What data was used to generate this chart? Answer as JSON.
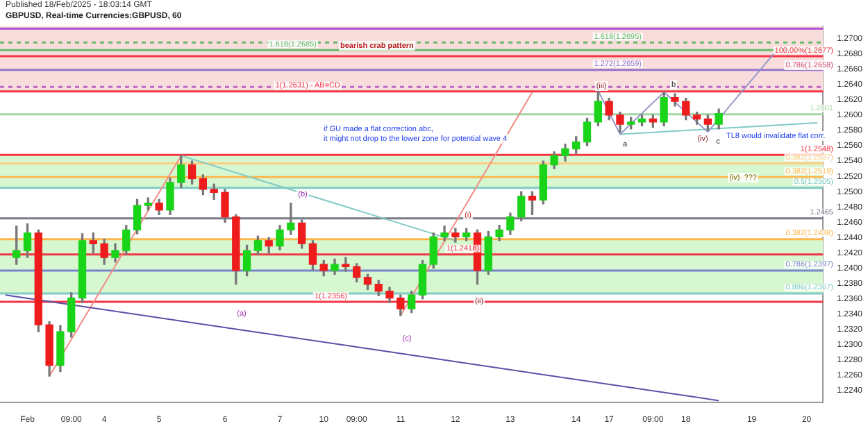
{
  "chart_data": {
    "type": "candlestick",
    "title": "GBPUSD, Real-time Currencies:GBPUSD, 60",
    "subtitle": "Published 18/Feb/2025 - 18:03:14 GMT",
    "categories": [
      null,
      null,
      "Feb",
      null,
      null,
      null,
      "09:00",
      null,
      null,
      "4",
      null,
      null,
      null,
      null,
      "5",
      null,
      null,
      null,
      null,
      null,
      "6",
      null,
      null,
      null,
      null,
      "7",
      null,
      null,
      null,
      "10",
      null,
      null,
      "09:00",
      null,
      null,
      null,
      "11",
      null,
      null,
      null,
      null,
      "12",
      null,
      null,
      null,
      null,
      "13",
      null,
      null,
      null,
      null,
      null,
      "14",
      null,
      null,
      "17",
      null,
      null,
      null,
      "09:00",
      null,
      null,
      "18",
      null,
      null,
      null,
      null,
      null,
      "19",
      null,
      null,
      null,
      null,
      "20",
      null
    ],
    "ohlc": [
      null,
      [
        1.2414,
        1.2455,
        1.2405,
        1.2423
      ],
      [
        1.2423,
        1.2458,
        1.2414,
        1.2446
      ],
      [
        1.2446,
        1.245,
        1.2317,
        1.2326
      ],
      [
        1.2326,
        1.233,
        1.2259,
        1.2273
      ],
      [
        1.2273,
        1.2325,
        1.2265,
        1.2317
      ],
      [
        1.2317,
        1.2368,
        1.231,
        1.2361
      ],
      [
        1.2361,
        1.2445,
        1.2355,
        1.2436
      ],
      [
        1.2436,
        1.2446,
        1.242,
        1.2432
      ],
      [
        1.2432,
        1.2438,
        1.2405,
        1.2414
      ],
      [
        1.2414,
        1.2432,
        1.2408,
        1.2423
      ],
      [
        1.2423,
        1.2456,
        1.2418,
        1.245
      ],
      [
        1.245,
        1.249,
        1.2445,
        1.2482
      ],
      [
        1.2482,
        1.2492,
        1.2476,
        1.2485
      ],
      [
        1.2485,
        1.249,
        1.247,
        1.2476
      ],
      [
        1.2476,
        1.2518,
        1.247,
        1.2512
      ],
      [
        1.2512,
        1.2547,
        1.2505,
        1.2535
      ],
      [
        1.2535,
        1.254,
        1.251,
        1.2517
      ],
      [
        1.2517,
        1.2522,
        1.2496,
        1.2503
      ],
      [
        1.2503,
        1.251,
        1.249,
        1.2499
      ],
      [
        1.2499,
        1.2503,
        1.246,
        1.2467
      ],
      [
        1.2467,
        1.247,
        1.2379,
        1.2397
      ],
      [
        1.2397,
        1.243,
        1.239,
        1.2423
      ],
      [
        1.2423,
        1.2442,
        1.2418,
        1.2436
      ],
      [
        1.2436,
        1.244,
        1.242,
        1.2429
      ],
      [
        1.2429,
        1.2456,
        1.2424,
        1.245
      ],
      [
        1.245,
        1.2485,
        1.2444,
        1.2459
      ],
      [
        1.2459,
        1.2463,
        1.2426,
        1.2432
      ],
      [
        1.2432,
        1.2436,
        1.2398,
        1.2405
      ],
      [
        1.2405,
        1.241,
        1.239,
        1.2397
      ],
      [
        1.2397,
        1.2412,
        1.2392,
        1.2405
      ],
      [
        1.2405,
        1.2414,
        1.2396,
        1.2402
      ],
      [
        1.2402,
        1.2406,
        1.2382,
        1.2388
      ],
      [
        1.2388,
        1.2392,
        1.2372,
        1.2379
      ],
      [
        1.2379,
        1.2384,
        1.2364,
        1.237
      ],
      [
        1.237,
        1.2375,
        1.2355,
        1.2361
      ],
      [
        1.2361,
        1.2365,
        1.2338,
        1.2347
      ],
      [
        1.2347,
        1.237,
        1.2342,
        1.2365
      ],
      [
        1.2365,
        1.241,
        1.236,
        1.2405
      ],
      [
        1.2405,
        1.2446,
        1.24,
        1.2441
      ],
      [
        1.2441,
        1.2455,
        1.2436,
        1.2446
      ],
      [
        1.2446,
        1.2452,
        1.2434,
        1.2441
      ],
      [
        1.2441,
        1.2452,
        1.2436,
        1.2446
      ],
      [
        1.2446,
        1.245,
        1.2379,
        1.2397
      ],
      [
        1.2397,
        1.2448,
        1.2392,
        1.2441
      ],
      [
        1.2441,
        1.2456,
        1.2436,
        1.245
      ],
      [
        1.245,
        1.2472,
        1.2444,
        1.2467
      ],
      [
        1.2467,
        1.25,
        1.2462,
        1.2494
      ],
      [
        1.2494,
        1.25,
        1.247,
        1.2489
      ],
      [
        1.2489,
        1.254,
        1.2484,
        1.2535
      ],
      [
        1.2535,
        1.2552,
        1.253,
        1.2547
      ],
      [
        1.2547,
        1.2562,
        1.254,
        1.2556
      ],
      [
        1.2556,
        1.2572,
        1.255,
        1.2565
      ],
      [
        1.2565,
        1.2596,
        1.256,
        1.2591
      ],
      [
        1.2591,
        1.2632,
        1.2586,
        1.2618
      ],
      [
        1.2618,
        1.2622,
        1.2594,
        1.26
      ],
      [
        1.26,
        1.2604,
        1.2578,
        1.2588
      ],
      [
        1.2588,
        1.2597,
        1.2582,
        1.2591
      ],
      [
        1.2591,
        1.26,
        1.2586,
        1.2595
      ],
      [
        1.2595,
        1.26,
        1.2584,
        1.2591
      ],
      [
        1.2591,
        1.263,
        1.2586,
        1.2623
      ],
      [
        1.2623,
        1.2628,
        1.2612,
        1.2618
      ],
      [
        1.2618,
        1.2622,
        1.2594,
        1.26
      ],
      [
        1.26,
        1.2604,
        1.2588,
        1.2595
      ],
      [
        1.2595,
        1.26,
        1.258,
        1.2588
      ],
      [
        1.2588,
        1.2608,
        1.2582,
        1.2602
      ],
      null,
      null,
      null,
      null,
      null,
      null,
      null,
      null,
      null
    ],
    "series": [
      {
        "type": "line",
        "color": "#5b4fa8",
        "values": [
          1.2365,
          null,
          null,
          null,
          null,
          null,
          null,
          null,
          null,
          null,
          null,
          null,
          null,
          null,
          null,
          null,
          null,
          null,
          null,
          null,
          null,
          null,
          null,
          null,
          null,
          null,
          null,
          null,
          null,
          null,
          null,
          null,
          null,
          null,
          null,
          null,
          null,
          null,
          null,
          null,
          null,
          null,
          null,
          null,
          null,
          null,
          null,
          null,
          null,
          null,
          null,
          null,
          null,
          null,
          null,
          null,
          null,
          null,
          null,
          null,
          null,
          null,
          null,
          null,
          null,
          1.2227,
          null,
          null,
          null,
          null,
          null,
          null,
          null,
          null,
          null
        ]
      },
      {
        "type": "line",
        "color": "#80cbc4",
        "values": [
          null,
          null,
          null,
          null,
          null,
          null,
          null,
          null,
          null,
          null,
          null,
          null,
          null,
          null,
          null,
          null,
          1.2547,
          null,
          null,
          null,
          null,
          null,
          null,
          null,
          null,
          null,
          null,
          null,
          null,
          null,
          null,
          null,
          null,
          null,
          null,
          null,
          null,
          null,
          null,
          null,
          null,
          1.2436,
          null,
          null,
          null,
          null,
          null,
          null,
          null,
          null,
          null,
          null,
          null,
          null,
          null,
          null,
          null,
          null,
          null,
          null,
          null,
          null,
          null,
          null,
          null,
          null,
          null,
          null,
          null,
          null,
          null,
          null,
          null,
          null,
          null
        ]
      },
      {
        "type": "line",
        "color": "#f28b82",
        "values": [
          null,
          null,
          null,
          null,
          1.2259,
          null,
          null,
          null,
          null,
          null,
          null,
          null,
          null,
          null,
          null,
          null,
          1.2547,
          null,
          null,
          null,
          null,
          null,
          null,
          null,
          null,
          null,
          null,
          null,
          null,
          null,
          null,
          null,
          null,
          null,
          null,
          null,
          null,
          null,
          null,
          null,
          null,
          null,
          null,
          null,
          null,
          null,
          null,
          null,
          null,
          null,
          null,
          null,
          null,
          null,
          null,
          null,
          null,
          null,
          null,
          null,
          null,
          null,
          null,
          null,
          null,
          null,
          null,
          null,
          null,
          null,
          null,
          null,
          null,
          null,
          null
        ]
      },
      {
        "type": "line",
        "color": "#f28b82",
        "values": [
          null,
          null,
          null,
          null,
          null,
          null,
          null,
          null,
          null,
          null,
          null,
          null,
          null,
          null,
          null,
          null,
          null,
          null,
          null,
          null,
          null,
          null,
          null,
          null,
          null,
          null,
          null,
          null,
          null,
          null,
          null,
          null,
          null,
          null,
          null,
          null,
          1.2338,
          null,
          null,
          null,
          null,
          null,
          null,
          null,
          null,
          null,
          null,
          null,
          1.263,
          null,
          null,
          null,
          null,
          null,
          null,
          null,
          null,
          null,
          null,
          null,
          null,
          null,
          null,
          null,
          null,
          null,
          null,
          null,
          null,
          null,
          null,
          null,
          null,
          null,
          null
        ]
      },
      {
        "type": "line",
        "color": "#9598c8",
        "values": [
          null,
          null,
          null,
          null,
          null,
          null,
          null,
          null,
          null,
          null,
          null,
          null,
          null,
          null,
          null,
          null,
          null,
          null,
          null,
          null,
          null,
          null,
          null,
          null,
          null,
          null,
          null,
          null,
          null,
          null,
          null,
          null,
          null,
          null,
          null,
          null,
          null,
          null,
          null,
          null,
          null,
          null,
          null,
          null,
          null,
          null,
          null,
          null,
          null,
          null,
          null,
          null,
          null,
          null,
          1.2632,
          null,
          1.2575,
          null,
          null,
          null,
          1.263,
          null,
          null,
          null,
          1.2578,
          null,
          null,
          null,
          null,
          null,
          null,
          null,
          null,
          null,
          null
        ]
      },
      {
        "type": "line",
        "color": "#9598c8",
        "values": [
          null,
          null,
          null,
          null,
          null,
          null,
          null,
          null,
          null,
          null,
          null,
          null,
          null,
          null,
          null,
          null,
          null,
          null,
          null,
          null,
          null,
          null,
          null,
          null,
          null,
          null,
          null,
          null,
          null,
          null,
          null,
          null,
          null,
          null,
          null,
          null,
          null,
          null,
          null,
          null,
          null,
          null,
          null,
          null,
          null,
          null,
          null,
          null,
          null,
          null,
          null,
          null,
          null,
          null,
          null,
          null,
          null,
          null,
          null,
          null,
          null,
          null,
          null,
          null,
          1.2578,
          null,
          null,
          null,
          null,
          null,
          1.268,
          null,
          null,
          null,
          null
        ]
      },
      {
        "type": "line",
        "color": "#80cbc4",
        "values": [
          null,
          null,
          null,
          null,
          null,
          null,
          null,
          null,
          null,
          null,
          null,
          null,
          null,
          null,
          null,
          null,
          null,
          null,
          null,
          null,
          null,
          null,
          null,
          null,
          null,
          null,
          null,
          null,
          null,
          null,
          null,
          null,
          null,
          null,
          null,
          null,
          null,
          null,
          null,
          null,
          null,
          null,
          null,
          null,
          null,
          null,
          null,
          null,
          null,
          null,
          null,
          null,
          null,
          null,
          null,
          null,
          1.2575,
          null,
          null,
          null,
          null,
          null,
          null,
          null,
          null,
          null,
          null,
          null,
          null,
          null,
          null,
          null,
          null,
          null,
          1.259
        ]
      }
    ],
    "ylim": [
      1.2225,
      1.2716
    ],
    "yticks": [
      {
        "value": 1.224,
        "label": "1.2240"
      },
      {
        "value": 1.226,
        "label": "1.2260"
      },
      {
        "value": 1.228,
        "label": "1.2280"
      },
      {
        "value": 1.23,
        "label": "1.2300"
      },
      {
        "value": 1.232,
        "label": "1.2320"
      },
      {
        "value": 1.234,
        "label": "1.2340"
      },
      {
        "value": 1.236,
        "label": "1.2360"
      },
      {
        "value": 1.238,
        "label": "1.2380"
      },
      {
        "value": 1.24,
        "label": "1.2400"
      },
      {
        "value": 1.242,
        "label": "1.2420"
      },
      {
        "value": 1.244,
        "label": "1.2440"
      },
      {
        "value": 1.246,
        "label": "1.2460"
      },
      {
        "value": 1.248,
        "label": "1.2480"
      },
      {
        "value": 1.25,
        "label": "1.2500"
      },
      {
        "value": 1.252,
        "label": "1.2520"
      },
      {
        "value": 1.254,
        "label": "1.2540"
      },
      {
        "value": 1.256,
        "label": "1.2560"
      },
      {
        "value": 1.258,
        "label": "1.2580"
      },
      {
        "value": 1.26,
        "label": "1.2600"
      },
      {
        "value": 1.262,
        "label": "1.2620"
      },
      {
        "value": 1.264,
        "label": "1.2640"
      },
      {
        "value": 1.266,
        "label": "1.2660"
      },
      {
        "value": 1.268,
        "label": "1.2680"
      },
      {
        "value": 1.27,
        "label": "1.2700"
      }
    ],
    "bands": [
      {
        "axis": "y",
        "from": 1.2632,
        "to": 1.2716,
        "color": "#f9dcdc"
      },
      {
        "axis": "y",
        "from": 1.2505,
        "to": 1.2548,
        "color": "#d6f7d0"
      },
      {
        "axis": "y",
        "from": 1.2367,
        "to": 1.2438,
        "color": "#d6f7d0"
      }
    ],
    "ref_lines": [
      {
        "axis": "y",
        "value": 1.2713,
        "color": "#b04fd0"
      },
      {
        "axis": "y",
        "value": 1.2695,
        "label": "1.618(1.2695)",
        "color": "#66bb6a",
        "line_style": "dashed"
      },
      {
        "axis": "y",
        "value": 1.2685,
        "label": "1.618(1.2685)",
        "color": "#66bb6a"
      },
      {
        "axis": "y",
        "value": 1.2677,
        "label": "100.00%(1.2677)",
        "color": "#f23645"
      },
      {
        "axis": "y",
        "value": 1.2659,
        "label": "1.272(1.2659)",
        "color": "#9575cd"
      },
      {
        "axis": "y",
        "value": 1.2637,
        "color": "#ba68c8",
        "line_style": "dashed"
      },
      {
        "axis": "y",
        "value": 1.2631,
        "label": "1(1.2631) - AB=CD",
        "color": "#f23645"
      },
      {
        "axis": "y",
        "value": 1.2601,
        "label": "1.2601",
        "color": "#a5d6a7"
      },
      {
        "axis": "y",
        "value": 1.2548,
        "label": "1(1.2548)",
        "color": "#f23645"
      },
      {
        "axis": "y",
        "value": 1.2537,
        "label": "0.382(1.2537)",
        "color": "#ffcc80"
      },
      {
        "axis": "y",
        "value": 1.2519,
        "label": "0.382(1.2519)",
        "color": "#ffb74d"
      },
      {
        "axis": "y",
        "value": 1.2505,
        "label": "0.5(1.2505)",
        "color": "#80cbc4"
      },
      {
        "axis": "y",
        "value": 1.2465,
        "label": "1.2465",
        "color": "#787b86"
      },
      {
        "axis": "y",
        "value": 1.2438,
        "label": "0.382(1.2438)",
        "color": "#ffb74d"
      },
      {
        "axis": "y",
        "value": 1.2418,
        "label": "1(1.2418)",
        "color": "#f23645"
      },
      {
        "axis": "y",
        "value": 1.2397,
        "label": "0.786(1.2397)",
        "color": "#7986cb"
      },
      {
        "axis": "y",
        "value": 1.2367,
        "label": "0.886(1.2367)",
        "color": "#80cbc4"
      },
      {
        "axis": "y",
        "value": 1.2356,
        "label": "1(1.2356)",
        "color": "#f23645"
      }
    ],
    "annotations": [
      {
        "text": "0.786(1.2658)",
        "y": 1.2658
      },
      "bearish crab pattern",
      "if GU made a flat correction abc,",
      "it might not drop to the lower zone for potential wave 4",
      "TL8 would invalidate flat corr.",
      "(iii)",
      "a",
      "b",
      "c",
      "(iv)",
      "(iv)  ???",
      "(i)",
      "(ii)",
      "(a)",
      "(b)",
      "(c)"
    ],
    "legend": false
  }
}
